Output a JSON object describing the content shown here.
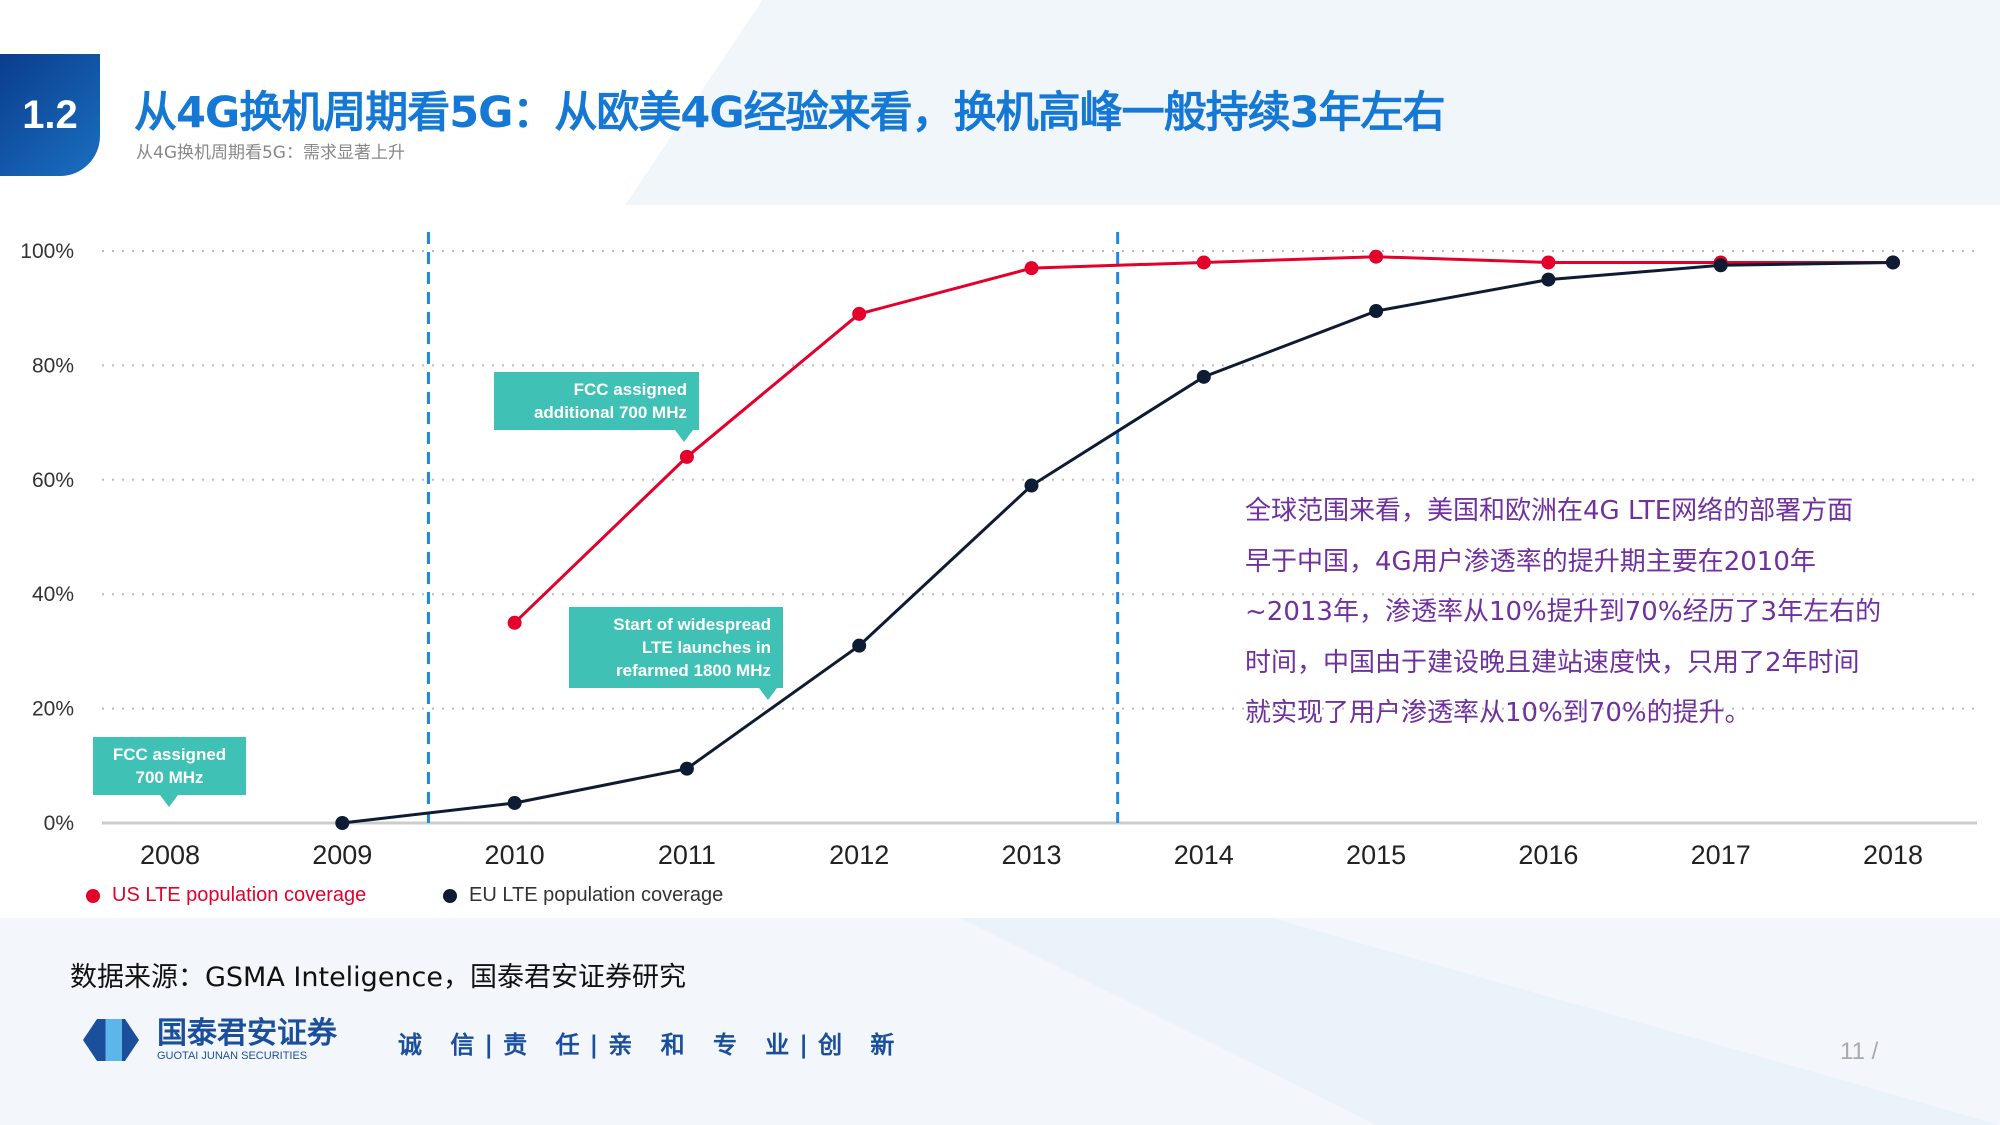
{
  "header": {
    "section_number": "1.2",
    "title": "从4G换机周期看5G：从欧美4G经验来看，换机高峰一般持续3年左右",
    "subtitle": "从4G换机周期看5G：需求显著上升"
  },
  "annotations": {
    "fcc_additional": "FCC assigned additional 700 MHz",
    "lte_launches": "Start of widespread LTE launches in refarmed 1800 MHz",
    "fcc_700": "FCC assigned 700 MHz"
  },
  "note_lines": [
    "全球范围来看，美国和欧洲在4G LTE网络的部署方面",
    "早于中国，4G用户渗透率的提升期主要在2010年",
    "~2013年，渗透率从10%提升到70%经历了3年左右的",
    "时间，中国由于建设晚且建站速度快，只用了2年时间",
    "就实现了用户渗透率从10%到70%的提升。"
  ],
  "footer": {
    "source": "数据来源：GSMA Inteligence，国泰君安证券研究",
    "logo_cn": "国泰君安证券",
    "logo_en": "GUOTAI JUNAN SECURITIES",
    "slogan": "诚 信|责 任|亲 和  专 业|创 新",
    "page": "11 /"
  },
  "chart_data": {
    "type": "line",
    "categories": [
      "2008",
      "2009",
      "2010",
      "2011",
      "2012",
      "2013",
      "2014",
      "2015",
      "2016",
      "2017",
      "2018"
    ],
    "y_ticks": [
      "0%",
      "20%",
      "40%",
      "60%",
      "80%",
      "100%"
    ],
    "ylim": [
      0,
      100
    ],
    "grid": true,
    "legend_position": "bottom-left",
    "reference_lines_between": [
      [
        "2009",
        "2010"
      ],
      [
        "2013",
        "2014"
      ]
    ],
    "series": [
      {
        "name": "US LTE population coverage",
        "color": "#e4002b",
        "values": [
          null,
          null,
          35,
          64,
          89,
          97,
          98,
          99,
          98,
          98,
          98
        ]
      },
      {
        "name": "EU LTE population coverage",
        "color": "#0d1b33",
        "values": [
          null,
          0,
          3.5,
          9.5,
          31,
          59,
          78,
          89.5,
          95,
          97.5,
          98
        ]
      }
    ]
  }
}
